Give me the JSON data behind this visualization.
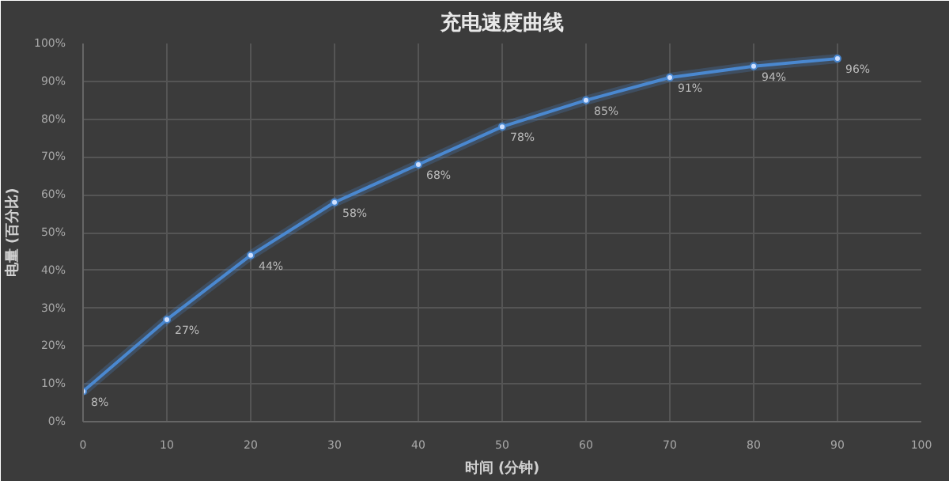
{
  "chart_data": {
    "type": "line",
    "title": "充电速度曲线",
    "xlabel": "时间 (分钟)",
    "ylabel": "电量 (百分比)",
    "x": [
      0,
      10,
      20,
      30,
      40,
      50,
      60,
      70,
      80,
      90
    ],
    "series": [
      {
        "color": "#4a88d0",
        "values": [
          8,
          27,
          44,
          58,
          68,
          78,
          85,
          91,
          94,
          96
        ],
        "value_labels": [
          "8%",
          "27%",
          "44%",
          "58%",
          "68%",
          "78%",
          "85%",
          "91%",
          "94%",
          "96%"
        ]
      }
    ],
    "xlim": [
      0,
      100
    ],
    "ylim": [
      0,
      100
    ],
    "xticks": [
      0,
      10,
      20,
      30,
      40,
      50,
      60,
      70,
      80,
      90,
      100
    ],
    "yticks": [
      {
        "value": 0,
        "label": "0%"
      },
      {
        "value": 10,
        "label": "10%"
      },
      {
        "value": 20,
        "label": "20%"
      },
      {
        "value": 30,
        "label": "30%"
      },
      {
        "value": 40,
        "label": "40%"
      },
      {
        "value": 50,
        "label": "50%"
      },
      {
        "value": 60,
        "label": "60%"
      },
      {
        "value": 70,
        "label": "70%"
      },
      {
        "value": 80,
        "label": "80%"
      },
      {
        "value": 90,
        "label": "90%"
      },
      {
        "value": 100,
        "label": "100%"
      }
    ],
    "grid": true,
    "marker": "circle",
    "line_style": "solid"
  }
}
